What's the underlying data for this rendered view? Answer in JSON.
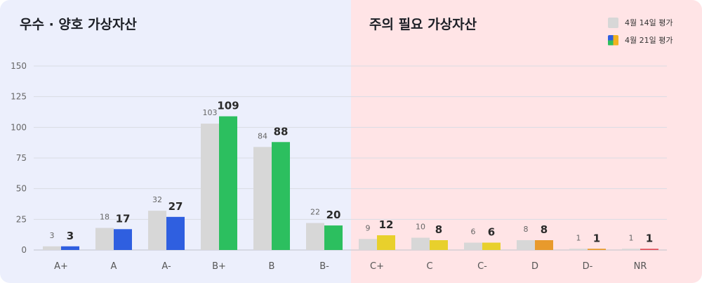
{
  "sections": {
    "good_title": "우수 · 양호 가상자산",
    "warn_title": "주의 필요 가상자산"
  },
  "legend": {
    "prev_label": "4월 14일 평가",
    "curr_label": "4월 21일 평가"
  },
  "colors": {
    "prev_bar": "#d7d7d7",
    "a_grade": "#2f5fe0",
    "b_grade": "#2cbf5f",
    "c_grade": "#e8d02c",
    "d_grade": "#e89a2c",
    "nr": "#e0505a",
    "good_zone_bg": "#eceffc",
    "warn_zone_bg": "#ffe4e6"
  },
  "chart_data": {
    "type": "bar",
    "categories": [
      "A+",
      "A",
      "A-",
      "B+",
      "B",
      "B-",
      "C+",
      "C",
      "C-",
      "D",
      "D-",
      "NR"
    ],
    "series": [
      {
        "name": "4월 14일 평가",
        "values": [
          3,
          18,
          32,
          103,
          84,
          22,
          9,
          10,
          6,
          8,
          1,
          1
        ]
      },
      {
        "name": "4월 21일 평가",
        "values": [
          3,
          17,
          27,
          109,
          88,
          20,
          12,
          8,
          6,
          8,
          1,
          1
        ]
      }
    ],
    "yticks": [
      0,
      25,
      50,
      75,
      100,
      125,
      150
    ],
    "ylim": [
      0,
      150
    ],
    "grid": true,
    "legend_position": "top-right"
  }
}
